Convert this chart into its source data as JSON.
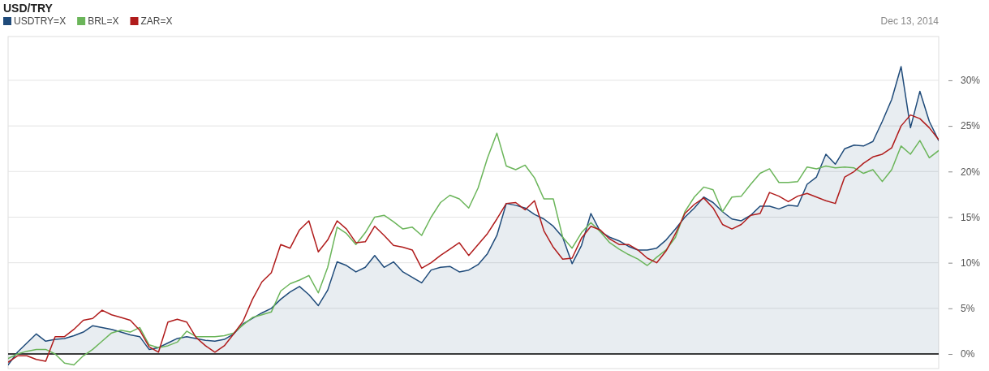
{
  "chart_data": {
    "type": "line",
    "title": "USD/TRY",
    "annotations": [
      "Dec 13, 2014"
    ],
    "legend": "top left",
    "grid": "y",
    "tick_labels": "y",
    "categories": [
      null,
      null,
      null,
      null,
      null,
      null,
      null,
      null,
      null,
      null,
      null,
      null,
      null,
      null,
      null,
      null,
      null,
      null,
      null,
      null,
      null,
      null,
      null,
      null,
      null,
      null,
      null,
      null,
      null,
      null,
      null,
      null,
      null,
      null,
      null,
      null,
      null,
      null,
      null,
      null,
      null,
      null,
      null,
      null,
      null,
      null,
      null,
      null,
      null,
      null,
      null,
      null,
      null,
      null,
      null,
      null,
      null,
      null,
      null,
      null,
      null,
      null,
      null,
      null,
      null,
      null,
      null,
      null,
      null,
      null,
      null,
      null,
      null,
      null,
      null,
      null,
      null,
      null,
      null,
      null,
      null,
      null,
      null,
      null,
      null,
      null,
      null,
      null,
      null,
      null,
      null,
      null,
      null,
      null,
      null,
      null,
      null,
      null,
      null,
      null
    ],
    "ylim": [
      -1.6,
      34.8
    ],
    "yticks": [
      {
        "value": 0,
        "label": "0%"
      },
      {
        "value": 5,
        "label": "5%"
      },
      {
        "value": 10,
        "label": "10%"
      },
      {
        "value": 15,
        "label": "15%"
      },
      {
        "value": 20,
        "label": "20%"
      },
      {
        "value": 25,
        "label": "25%"
      },
      {
        "value": 30,
        "label": "30%"
      }
    ],
    "ref_lines": [
      {
        "axis": "y",
        "value": 0,
        "label": null,
        "color": "#000000"
      }
    ],
    "series": [
      {
        "name": "USDTRY=X",
        "type": "area",
        "color": "#1f4b7a",
        "values": [
          -1.2,
          0.2,
          1.2,
          2.2,
          1.4,
          1.6,
          1.7,
          2,
          2.4,
          3.1,
          2.9,
          2.7,
          2.4,
          2.1,
          1.9,
          0.5,
          0.7,
          1.2,
          1.7,
          1.9,
          1.7,
          1.5,
          1.4,
          1.6,
          2.2,
          3.3,
          3.9,
          4.5,
          5,
          6,
          6.8,
          7.4,
          6.5,
          5.3,
          7,
          10.1,
          9.7,
          9,
          9.5,
          10.8,
          9.5,
          10.1,
          9,
          8.4,
          7.8,
          9.2,
          9.5,
          9.6,
          9,
          9.2,
          9.8,
          11,
          13,
          16.5,
          16.3,
          16,
          15.3,
          14.8,
          14,
          12.8,
          9.9,
          11.9,
          15.4,
          13.4,
          12.8,
          12.4,
          11.8,
          11.4,
          11.4,
          11.6,
          12.5,
          13.7,
          15,
          16,
          17.2,
          16.6,
          15.6,
          14.8,
          14.6,
          15.2,
          16.2,
          16.2,
          15.9,
          16.3,
          16.2,
          18.6,
          19.4,
          21.9,
          20.8,
          22.5,
          22.9,
          22.8,
          23.3,
          25.5,
          27.9,
          31.5,
          24.8,
          28.8,
          25.5,
          23.4
        ]
      },
      {
        "name": "BRL=X",
        "color": "#6bb55a",
        "values": [
          -0.5,
          0,
          0.3,
          0.5,
          0.5,
          0,
          -1,
          -1.2,
          -0.2,
          0.5,
          1.4,
          2.3,
          2.6,
          2.4,
          2.9,
          1,
          0.7,
          0.9,
          1.3,
          2.5,
          1.9,
          1.9,
          1.9,
          2,
          2.3,
          3.2,
          4,
          4.3,
          4.6,
          6.9,
          7.7,
          8.1,
          8.6,
          6.7,
          9.5,
          13.9,
          13.2,
          12,
          13.3,
          15,
          15.2,
          14.5,
          13.7,
          13.9,
          13,
          15,
          16.6,
          17.4,
          17,
          16,
          18.2,
          21.5,
          24.2,
          20.6,
          20.2,
          20.7,
          19.3,
          17,
          17,
          12.8,
          11.6,
          13.3,
          14.4,
          13.4,
          12.2,
          11.5,
          10.9,
          10.4,
          9.7,
          10.6,
          11.4,
          12.8,
          15.6,
          17.2,
          18.3,
          18,
          15.6,
          17.2,
          17.3,
          18.6,
          19.8,
          20.3,
          18.8,
          18.8,
          18.9,
          20.5,
          20.3,
          20.6,
          20.4,
          20.5,
          20.4,
          19.8,
          20.2,
          18.9,
          20.2,
          22.8,
          21.9,
          23.4,
          21.5,
          22.3
        ]
      },
      {
        "name": "ZAR=X",
        "color": "#b01c1c",
        "values": [
          -0.9,
          -0.2,
          -0.2,
          -0.6,
          -0.8,
          1.9,
          1.9,
          2.7,
          3.7,
          3.9,
          4.8,
          4.3,
          4,
          3.7,
          2.6,
          0.8,
          0.2,
          3.5,
          3.8,
          3.5,
          1.8,
          0.9,
          0.2,
          0.9,
          2.2,
          3.6,
          6,
          7.9,
          8.9,
          12,
          11.6,
          13.6,
          14.6,
          11.2,
          12.5,
          14.6,
          13.7,
          12.2,
          12.3,
          14,
          13,
          11.9,
          11.7,
          11.4,
          9.4,
          10,
          10.8,
          11.5,
          12.2,
          10.8,
          12,
          13.2,
          14.8,
          16.5,
          16.6,
          15.8,
          16.8,
          13.5,
          11.7,
          10.4,
          10.5,
          12.7,
          14,
          13.6,
          12.6,
          12,
          12,
          11.4,
          10.5,
          10,
          11.3,
          13.2,
          15.4,
          16.4,
          17.1,
          16,
          14.2,
          13.7,
          14.2,
          15.2,
          15.4,
          17.7,
          17.3,
          16.7,
          17.3,
          17.6,
          17.2,
          16.8,
          16.5,
          19.4,
          20,
          20.9,
          21.6,
          21.9,
          22.6,
          25,
          26.2,
          25.8,
          24.8,
          23.5
        ]
      }
    ]
  }
}
